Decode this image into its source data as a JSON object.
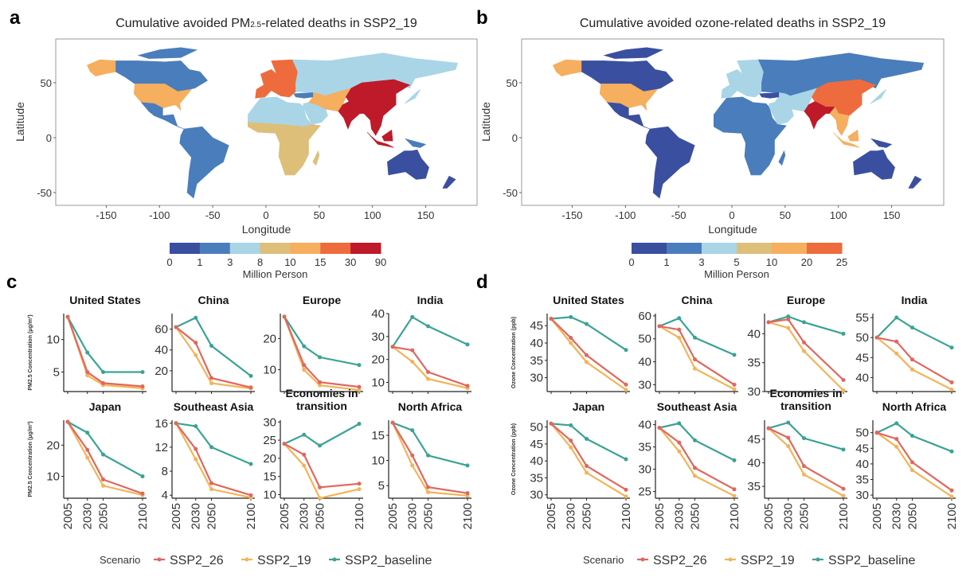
{
  "panel_labels": {
    "a": "a",
    "b": "b",
    "c": "c",
    "d": "d"
  },
  "colors": {
    "SSP2_26": "#E0675E",
    "SSP2_19": "#F2B458",
    "SSP2_baseline": "#3AA394",
    "map_palette": [
      "#3A4FA0",
      "#4A7DBB",
      "#A9D5E7",
      "#DDBF7A",
      "#F6AE5F",
      "#EE6B3D",
      "#BE1A2A"
    ]
  },
  "chart_data": [
    {
      "type": "map",
      "title": "Cumulative avoided PM2.5-related deaths in SSP2_19",
      "title_parts": [
        "Cumulative avoided PM",
        "2.5",
        "-related deaths in SSP2_19"
      ],
      "xlabel": "Longitude",
      "ylabel": "Latitude",
      "xticks": [
        "-150",
        "-100",
        "-50",
        "0",
        "50",
        "100",
        "150"
      ],
      "xtick_values": [
        -150,
        -100,
        -50,
        0,
        50,
        100,
        150
      ],
      "yticks": [
        "50",
        "0",
        "-50"
      ],
      "ytick_values": [
        50,
        0,
        -50
      ],
      "colorbar_ticks": [
        "0",
        "1",
        "3",
        "8",
        "10",
        "15",
        "30",
        "90"
      ],
      "colorbar_label": "Million Person",
      "region_classes": {
        "alaska": 4,
        "canada": 1,
        "canada_islands": 1,
        "usa": 4,
        "mexico": 1,
        "south_america": 1,
        "europe": 5,
        "russia": 2,
        "north_africa": 2,
        "arabia": 2,
        "sub_saharan_africa": 3,
        "madagascar": 3,
        "central_asia": 4,
        "china": 6,
        "india": 6,
        "southeast_asia": 6,
        "sumatra_java": 6,
        "borneo": 6,
        "png": 1,
        "japan": 2,
        "australia": 0,
        "new_zealand": 0,
        "turkey": 1
      }
    },
    {
      "type": "map",
      "title": "Cumulative avoided ozone-related deaths in SSP2_19",
      "xlabel": "Longitude",
      "ylabel": "Latitude",
      "xticks": [
        "-150",
        "-100",
        "-50",
        "0",
        "50",
        "100",
        "150"
      ],
      "xtick_values": [
        -150,
        -100,
        -50,
        0,
        50,
        100,
        150
      ],
      "yticks": [
        "50",
        "0",
        "-50"
      ],
      "ytick_values": [
        50,
        0,
        -50
      ],
      "colorbar_ticks": [
        "0",
        "1",
        "3",
        "5",
        "10",
        "20",
        "25"
      ],
      "colorbar_label": "Million Person",
      "region_classes": {
        "alaska": 4,
        "canada": 0,
        "canada_islands": 0,
        "usa": 4,
        "mexico": 0,
        "south_america": 0,
        "europe": 2,
        "russia": 1,
        "north_africa": 1,
        "arabia": 2,
        "sub_saharan_africa": 1,
        "madagascar": 1,
        "central_asia": 2,
        "china": 5,
        "india": 6,
        "southeast_asia": 4,
        "sumatra_java": 4,
        "borneo": 4,
        "png": 0,
        "japan": 2,
        "australia": 0,
        "new_zealand": 0,
        "turkey": 0
      }
    },
    {
      "type": "line",
      "ylabel": "PM2.5 Concentration (μg/m³)",
      "x": [
        2005,
        2030,
        2050,
        2100
      ],
      "xticks": [
        "2005",
        "2030",
        "2050",
        "2100"
      ],
      "legend_title": "Scenario",
      "legend": [
        "SSP2_26",
        "SSP2_19",
        "SSP2_baseline"
      ],
      "subplots": [
        {
          "title": "United States",
          "ylim": [
            2,
            14
          ],
          "yticks": [
            "5",
            "10"
          ],
          "ytick_values": [
            5,
            10
          ],
          "series": {
            "SSP2_26": [
              13.5,
              5,
              3.3,
              2.8
            ],
            "SSP2_19": [
              13.5,
              4.5,
              3,
              2.5
            ],
            "SSP2_baseline": [
              13.5,
              8,
              5,
              5
            ]
          }
        },
        {
          "title": "China",
          "ylim": [
            0,
            75
          ],
          "yticks": [
            "20",
            "40",
            "60"
          ],
          "ytick_values": [
            20,
            40,
            60
          ],
          "series": {
            "SSP2_26": [
              62,
              47,
              13,
              4
            ],
            "SSP2_19": [
              62,
              35,
              8,
              3
            ],
            "SSP2_baseline": [
              62,
              71,
              44,
              15
            ]
          }
        },
        {
          "title": "Europe",
          "ylim": [
            3,
            28
          ],
          "yticks": [
            "10",
            "20"
          ],
          "ytick_values": [
            10,
            20
          ],
          "series": {
            "SSP2_26": [
              27,
              11.5,
              6,
              4.5
            ],
            "SSP2_19": [
              27,
              10,
              5,
              3.5
            ],
            "SSP2_baseline": [
              27,
              17.5,
              14,
              11.5
            ]
          }
        },
        {
          "title": "India",
          "ylim": [
            6,
            40
          ],
          "yticks": [
            "10",
            "20",
            "30",
            "40"
          ],
          "ytick_values": [
            10,
            20,
            30,
            40
          ],
          "series": {
            "SSP2_26": [
              25.5,
              24,
              14.5,
              8.5
            ],
            "SSP2_19": [
              25.5,
              19,
              11.5,
              7.5
            ],
            "SSP2_baseline": [
              25.5,
              38.5,
              34.5,
              26.5
            ]
          }
        },
        {
          "title": "Japan",
          "ylim": [
            3,
            28
          ],
          "yticks": [
            "10",
            "20"
          ],
          "ytick_values": [
            10,
            20
          ],
          "series": {
            "SSP2_26": [
              27.5,
              18.5,
              9,
              4.5
            ],
            "SSP2_19": [
              27.5,
              16,
              7,
              4
            ],
            "SSP2_baseline": [
              27.5,
              24,
              17,
              10
            ]
          }
        },
        {
          "title": "Southeast Asia",
          "ylim": [
            3.5,
            16.5
          ],
          "yticks": [
            "4",
            "8",
            "12",
            "16"
          ],
          "ytick_values": [
            4,
            8,
            12,
            16
          ],
          "series": {
            "SSP2_26": [
              16,
              11.7,
              6,
              4
            ],
            "SSP2_19": [
              16,
              10,
              5,
              3.6
            ],
            "SSP2_baseline": [
              16,
              15.5,
              12,
              9.2
            ]
          }
        },
        {
          "title": "Economies in",
          "title2": "transition",
          "ylim": [
            9,
            30.5
          ],
          "yticks": [
            "10",
            "15",
            "20",
            "25",
            "30"
          ],
          "ytick_values": [
            10,
            15,
            20,
            25,
            30
          ],
          "series": {
            "SSP2_26": [
              24,
              21,
              12,
              13
            ],
            "SSP2_19": [
              24,
              18,
              9,
              11.5
            ],
            "SSP2_baseline": [
              24,
              26.5,
              23.5,
              29.5
            ]
          }
        },
        {
          "title": "North Africa",
          "ylim": [
            2.5,
            18
          ],
          "yticks": [
            "5",
            "10",
            "15"
          ],
          "ytick_values": [
            5,
            10,
            15
          ],
          "series": {
            "SSP2_26": [
              17.5,
              11,
              4.7,
              3.5
            ],
            "SSP2_19": [
              17.5,
              9,
              3.7,
              3
            ],
            "SSP2_baseline": [
              17.5,
              16,
              11,
              9
            ]
          }
        }
      ]
    },
    {
      "type": "line",
      "ylabel": "Ozone Concentration (ppb)",
      "x": [
        2005,
        2030,
        2050,
        2100
      ],
      "xticks": [
        "2005",
        "2030",
        "2050",
        "2100"
      ],
      "legend_title": "Scenario",
      "legend": [
        "SSP2_26",
        "SSP2_19",
        "SSP2_baseline"
      ],
      "subplots": [
        {
          "title": "United States",
          "ylim": [
            26,
            48.5
          ],
          "yticks": [
            "30",
            "35",
            "40",
            "45"
          ],
          "ytick_values": [
            30,
            35,
            40,
            45
          ],
          "series": {
            "SSP2_26": [
              47,
              41.5,
              36.5,
              28
            ],
            "SSP2_19": [
              47,
              40,
              34.5,
              26.5
            ],
            "SSP2_baseline": [
              47,
              47.5,
              45.5,
              38
            ]
          }
        },
        {
          "title": "China",
          "ylim": [
            27,
            61
          ],
          "yticks": [
            "30",
            "40",
            "50",
            "60"
          ],
          "ytick_values": [
            30,
            40,
            50,
            60
          ],
          "series": {
            "SSP2_26": [
              55.5,
              54,
              41,
              30
            ],
            "SSP2_19": [
              55.5,
              50.5,
              37,
              28
            ],
            "SSP2_baseline": [
              55.5,
              59,
              50.5,
              43
            ]
          }
        },
        {
          "title": "Europe",
          "ylim": [
            30,
            43.5
          ],
          "yticks": [
            "30",
            "35",
            "40"
          ],
          "ytick_values": [
            30,
            35,
            40
          ],
          "series": {
            "SSP2_26": [
              42,
              42.5,
              38.5,
              32
            ],
            "SSP2_19": [
              42,
              41,
              37,
              30.2
            ],
            "SSP2_baseline": [
              42,
              43,
              42,
              40
            ]
          }
        },
        {
          "title": "India",
          "ylim": [
            36.5,
            56
          ],
          "yticks": [
            "40",
            "45",
            "50",
            "55"
          ],
          "ytick_values": [
            40,
            45,
            50,
            55
          ],
          "series": {
            "SSP2_26": [
              50,
              49,
              44.5,
              38.8
            ],
            "SSP2_19": [
              50,
              46,
              42,
              37
            ],
            "SSP2_baseline": [
              50,
              55,
              52.5,
              47.5
            ]
          }
        },
        {
          "title": "Japan",
          "ylim": [
            29,
            52
          ],
          "yticks": [
            "30",
            "35",
            "40",
            "45",
            "50"
          ],
          "ytick_values": [
            30,
            35,
            40,
            45,
            50
          ],
          "series": {
            "SSP2_26": [
              51,
              46,
              38.5,
              31.5
            ],
            "SSP2_19": [
              51,
              44,
              36.5,
              29.5
            ],
            "SSP2_baseline": [
              51,
              50.5,
              46.5,
              40.5
            ]
          }
        },
        {
          "title": "Southeast Asia",
          "ylim": [
            23.5,
            41
          ],
          "yticks": [
            "25",
            "30",
            "35",
            "40"
          ],
          "ytick_values": [
            25,
            30,
            35,
            40
          ],
          "series": {
            "SSP2_26": [
              39.3,
              36,
              30.3,
              25.5
            ],
            "SSP2_19": [
              39.3,
              34,
              28.5,
              24
            ],
            "SSP2_baseline": [
              39.3,
              40.3,
              36.5,
              32
            ]
          }
        },
        {
          "title": "Economies in",
          "title2": "transition",
          "ylim": [
            32.5,
            49
          ],
          "yticks": [
            "35",
            "40",
            "45"
          ],
          "ytick_values": [
            35,
            40,
            45
          ],
          "series": {
            "SSP2_26": [
              47.3,
              45.3,
              39.3,
              34.5
            ],
            "SSP2_19": [
              47.3,
              43.5,
              37.5,
              33
            ],
            "SSP2_baseline": [
              47.3,
              48.5,
              45.2,
              42.8
            ]
          }
        },
        {
          "title": "North Africa",
          "ylim": [
            29,
            54
          ],
          "yticks": [
            "30",
            "35",
            "40",
            "45",
            "50"
          ],
          "ytick_values": [
            30,
            35,
            40,
            45,
            50
          ],
          "series": {
            "SSP2_26": [
              50,
              48,
              40.5,
              31.5
            ],
            "SSP2_19": [
              50,
              45.5,
              38,
              29.5
            ],
            "SSP2_baseline": [
              50,
              53,
              49,
              44
            ]
          }
        }
      ]
    }
  ]
}
